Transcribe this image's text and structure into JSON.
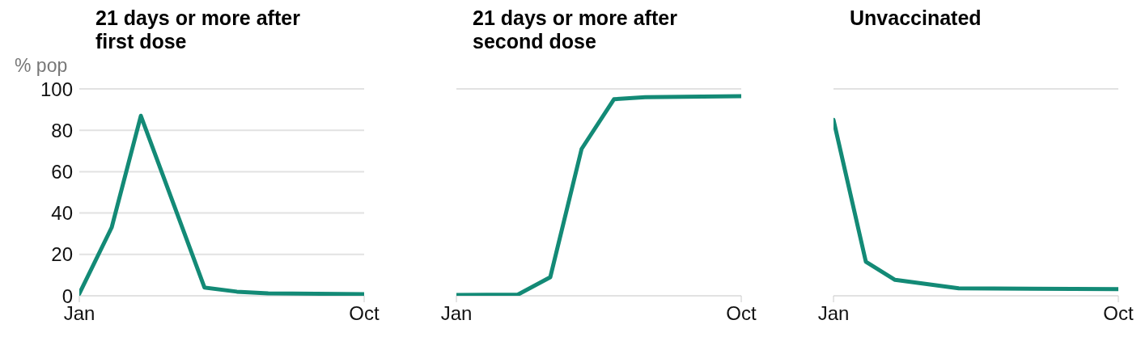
{
  "chart_data": [
    {
      "type": "line",
      "title": "21 days or more after first dose",
      "ylabel": "% pop",
      "x": [
        "--01-01",
        "--02-01",
        "--03-01",
        "--05-01",
        "--06-01",
        "--07-01",
        "--10-01"
      ],
      "values": [
        1,
        33,
        87,
        4,
        2,
        1.2,
        0.8
      ],
      "color": "#138a76",
      "xlim": [
        "--01-01",
        "--10-01"
      ],
      "xticks": [
        {
          "value": "--01-01",
          "label": "Jan"
        },
        {
          "value": "--10-01",
          "label": "Oct"
        }
      ],
      "ylim": [
        0,
        100
      ],
      "yticks": [
        0,
        20,
        40,
        60,
        80,
        100
      ],
      "grid": "y"
    },
    {
      "type": "line",
      "title": "21 days or more after second dose",
      "x": [
        "--01-01",
        "--03-01",
        "--04-01",
        "--05-01",
        "--06-01",
        "--07-01",
        "--10-01"
      ],
      "values": [
        0.4,
        0.6,
        9,
        71,
        95,
        96,
        96.5
      ],
      "color": "#138a76",
      "xlim": [
        "--01-01",
        "--10-01"
      ],
      "xticks": [
        {
          "value": "--01-01",
          "label": "Jan"
        },
        {
          "value": "--10-01",
          "label": "Oct"
        }
      ],
      "ylim": [
        0,
        100
      ],
      "yticks": [
        0,
        20,
        40,
        60,
        80,
        100
      ],
      "grid": "y",
      "tick_labels": "x"
    },
    {
      "type": "line",
      "title": "Unvaccinated",
      "x": [
        "--01-01",
        "--02-01",
        "--03-01",
        "--05-01",
        "--10-01"
      ],
      "values": [
        85,
        16.5,
        7.7,
        3.6,
        3.2
      ],
      "color": "#138a76",
      "xlim": [
        "--01-01",
        "--10-01"
      ],
      "xticks": [
        {
          "value": "--01-01",
          "label": "Jan"
        },
        {
          "value": "--10-01",
          "label": "Oct"
        }
      ],
      "ylim": [
        0,
        100
      ],
      "yticks": [
        0,
        20,
        40,
        60,
        80,
        100
      ],
      "grid": "y",
      "tick_labels": "x"
    }
  ]
}
